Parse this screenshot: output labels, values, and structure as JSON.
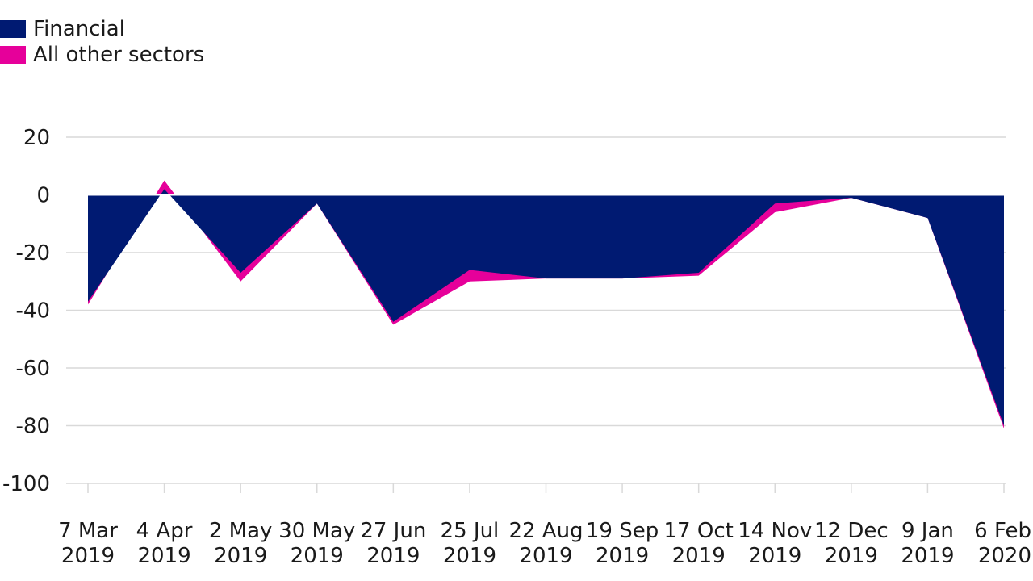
{
  "chart_data": {
    "type": "area",
    "legend_position": "top-left",
    "grid": true,
    "title": "",
    "xlabel": "",
    "ylabel": "",
    "ylim": [
      -100,
      20
    ],
    "yticks": [
      20,
      0,
      -20,
      -40,
      -60,
      -80,
      -100
    ],
    "categories": [
      [
        "7 Mar",
        "2019"
      ],
      [
        "4 Apr",
        "2019"
      ],
      [
        "2 May",
        "2019"
      ],
      [
        "30 May",
        "2019"
      ],
      [
        "27 Jun",
        "2019"
      ],
      [
        "25 Jul",
        "2019"
      ],
      [
        "22 Aug",
        "2019"
      ],
      [
        "19 Sep",
        "2019"
      ],
      [
        "17 Oct",
        "2019"
      ],
      [
        "14 Nov",
        "2019"
      ],
      [
        "12 Dec",
        "2019"
      ],
      [
        "9 Jan",
        "2019"
      ],
      [
        "6 Feb",
        "2020"
      ]
    ],
    "series": [
      {
        "name": "Financial",
        "color": "#001a72",
        "values": [
          -37,
          2,
          -27,
          -3,
          -44,
          -26,
          -29,
          -29,
          -27,
          -3,
          -1,
          -8,
          -80
        ]
      },
      {
        "name": "All other sectors",
        "color": "#e6009a",
        "values": [
          -1,
          3,
          -3,
          0,
          -1,
          -4,
          0,
          0,
          -1,
          -3,
          0,
          0,
          -1
        ]
      }
    ]
  }
}
